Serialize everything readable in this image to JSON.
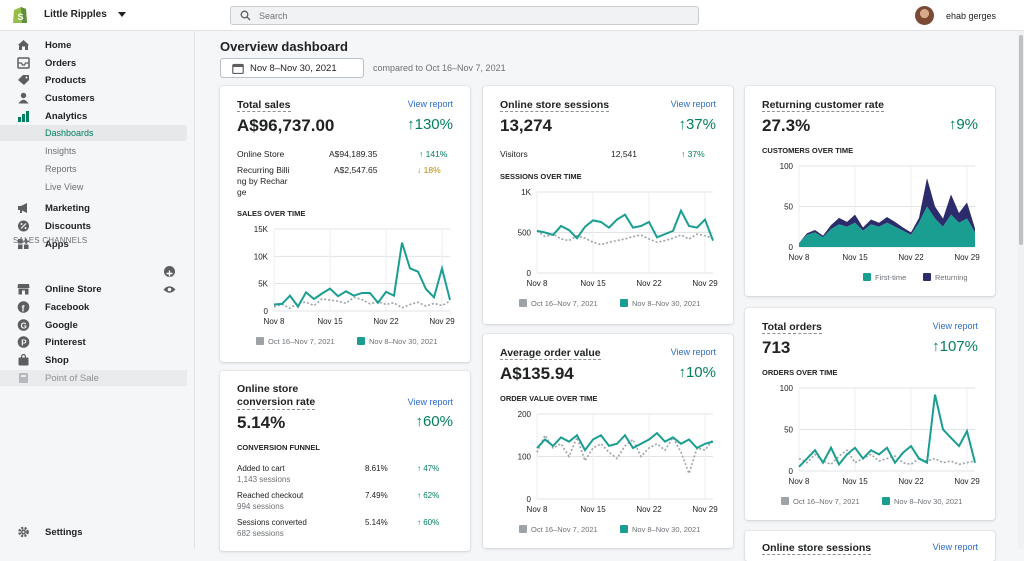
{
  "store_name": "Little Ripples",
  "search": {
    "placeholder": "Search"
  },
  "user_name": "ehab gerges",
  "nav": {
    "home": "Home",
    "orders": "Orders",
    "products": "Products",
    "customers": "Customers",
    "analytics": "Analytics",
    "dashboards": "Dashboards",
    "insights": "Insights",
    "reports": "Reports",
    "live_view": "Live View",
    "marketing": "Marketing",
    "discounts": "Discounts",
    "apps": "Apps",
    "settings": "Settings"
  },
  "sales_channels": {
    "title": "SALES CHANNELS",
    "online_store": "Online Store",
    "facebook": "Facebook",
    "google": "Google",
    "pinterest": "Pinterest",
    "shop": "Shop",
    "pos": "Point of Sale"
  },
  "colors": {
    "accent": "#008060",
    "teal": "#1a9e91",
    "navy": "#2c2b6b",
    "grey": "#9ea3a8",
    "link": "#2c6ecb"
  },
  "page": {
    "title": "Overview dashboard",
    "date_range": "Nov 8–Nov 30, 2021",
    "compare": "compared to Oct 16–Nov 7, 2021"
  },
  "view_report": "View report",
  "legend": {
    "prev": "Oct 16–Nov 7, 2021",
    "cur": "Nov 8–Nov 30, 2021",
    "first": "First-time",
    "returning": "Returning"
  },
  "total_sales": {
    "title": "Total sales",
    "value": "A$96,737.00",
    "pct": "130%",
    "rows": [
      {
        "label": "Online Store",
        "value": "A$94,189.35",
        "pct": "141%"
      },
      {
        "label1": "Recurring Billi",
        "label2": "ng by Rechar",
        "label3": "ge",
        "value": "A$2,547.65",
        "pct": "18%"
      }
    ],
    "chart_title": "SALES OVER TIME"
  },
  "conversion": {
    "title1": "Online store",
    "title2": "conversion rate",
    "value": "5.14%",
    "pct": "60%",
    "funnel_title": "CONVERSION FUNNEL",
    "rows": [
      {
        "label": "Added to cart",
        "sub": "1,143 sessions",
        "value": "8.61%",
        "pct": "47%"
      },
      {
        "label": "Reached checkout",
        "sub": "994 sessions",
        "value": "7.49%",
        "pct": "62%"
      },
      {
        "label": "Sessions converted",
        "sub": "682 sessions",
        "value": "5.14%",
        "pct": "60%"
      }
    ]
  },
  "sessions": {
    "title": "Online store sessions",
    "value": "13,274",
    "pct": "37%",
    "row": {
      "label": "Visitors",
      "value": "12,541",
      "pct": "37%"
    },
    "chart_title": "SESSIONS OVER TIME"
  },
  "aov": {
    "title": "Average order value",
    "value": "A$135.94",
    "pct": "10%",
    "chart_title": "ORDER VALUE OVER TIME"
  },
  "returning": {
    "title": "Returning customer rate",
    "value": "27.3%",
    "pct": "9%",
    "chart_title": "CUSTOMERS OVER TIME"
  },
  "orders": {
    "title": "Total orders",
    "value": "713",
    "pct": "107%",
    "chart_title": "ORDERS OVER TIME"
  },
  "sessions2": {
    "title": "Online store sessions"
  },
  "chart_data": [
    {
      "type": "line",
      "title": "SALES OVER TIME",
      "x_ticks": [
        "Nov 8",
        "Nov 15",
        "Nov 22",
        "Nov 29"
      ],
      "y_ticks": [
        "15K",
        "10K",
        "5K",
        "0"
      ],
      "ylim": [
        0,
        15000
      ],
      "series": [
        {
          "name": "Oct 16–Nov 7, 2021",
          "values": [
            800,
            1200,
            500,
            1500,
            1600,
            1000,
            2200,
            2000,
            1800,
            1400,
            2500,
            2100,
            1300,
            1700,
            1200,
            1500,
            600,
            1200,
            1600,
            900,
            1400,
            1000,
            1800
          ]
        },
        {
          "name": "Nov 8–Nov 30, 2021",
          "values": [
            1200,
            1300,
            2800,
            800,
            3400,
            2200,
            3200,
            4100,
            2700,
            3600,
            2800,
            3300,
            3300,
            1500,
            3500,
            2800,
            12500,
            7800,
            7200,
            4000,
            2500,
            7800,
            2000
          ]
        }
      ]
    },
    {
      "type": "line",
      "title": "SESSIONS OVER TIME",
      "x_ticks": [
        "Nov 8",
        "Nov 15",
        "Nov 22",
        "Nov 29"
      ],
      "y_ticks": [
        "1K",
        "500",
        "0"
      ],
      "ylim": [
        0,
        1000
      ],
      "series": [
        {
          "name": "Oct 16–Nov 7, 2021",
          "values": [
            520,
            450,
            480,
            420,
            400,
            460,
            430,
            380,
            350,
            380,
            400,
            420,
            450,
            470,
            420,
            380,
            400,
            430,
            470,
            420,
            480,
            460,
            430
          ]
        },
        {
          "name": "Nov 8–Nov 30, 2021",
          "values": [
            520,
            500,
            470,
            580,
            530,
            430,
            570,
            650,
            630,
            560,
            660,
            720,
            560,
            580,
            630,
            440,
            480,
            520,
            770,
            580,
            560,
            660,
            400
          ]
        }
      ]
    },
    {
      "type": "line",
      "title": "ORDER VALUE OVER TIME",
      "x_ticks": [
        "Nov 8",
        "Nov 15",
        "Nov 22",
        "Nov 29"
      ],
      "y_ticks": [
        "200",
        "100",
        "0"
      ],
      "ylim": [
        0,
        200
      ],
      "series": [
        {
          "name": "Oct 16–Nov 7, 2021",
          "values": [
            110,
            150,
            120,
            130,
            100,
            145,
            90,
            120,
            130,
            110,
            95,
            125,
            140,
            100,
            120,
            130,
            115,
            145,
            110,
            60,
            120,
            115,
            140
          ]
        },
        {
          "name": "Nov 8–Nov 30, 2021",
          "values": [
            120,
            140,
            125,
            145,
            135,
            150,
            115,
            140,
            150,
            125,
            130,
            150,
            120,
            130,
            140,
            155,
            135,
            145,
            130,
            140,
            120,
            130,
            135
          ]
        }
      ]
    },
    {
      "type": "area",
      "title": "CUSTOMERS OVER TIME",
      "x_ticks": [
        "Nov 8",
        "Nov 15",
        "Nov 22",
        "Nov 29"
      ],
      "y_ticks": [
        "100",
        "50",
        "0"
      ],
      "ylim": [
        0,
        100
      ],
      "series": [
        {
          "name": "First-time",
          "values": [
            5,
            15,
            18,
            12,
            22,
            28,
            25,
            30,
            20,
            28,
            25,
            30,
            25,
            20,
            15,
            30,
            50,
            35,
            25,
            40,
            30,
            35,
            18
          ]
        },
        {
          "name": "Returning",
          "values": [
            0,
            2,
            3,
            2,
            5,
            8,
            6,
            10,
            4,
            6,
            5,
            7,
            6,
            4,
            3,
            6,
            35,
            15,
            10,
            25,
            12,
            20,
            5
          ]
        }
      ]
    },
    {
      "type": "line",
      "title": "ORDERS OVER TIME",
      "x_ticks": [
        "Nov 8",
        "Nov 15",
        "Nov 22",
        "Nov 29"
      ],
      "y_ticks": [
        "100",
        "50",
        "0"
      ],
      "ylim": [
        0,
        100
      ],
      "series": [
        {
          "name": "Oct 16–Nov 7, 2021",
          "values": [
            15,
            10,
            20,
            12,
            8,
            18,
            25,
            10,
            15,
            20,
            12,
            15,
            18,
            10,
            8,
            15,
            12,
            15,
            10,
            12,
            8,
            10,
            12
          ]
        },
        {
          "name": "Nov 8–Nov 30, 2021",
          "values": [
            5,
            15,
            25,
            10,
            28,
            8,
            20,
            28,
            15,
            25,
            20,
            28,
            10,
            22,
            30,
            15,
            10,
            92,
            50,
            40,
            30,
            48,
            10
          ]
        }
      ]
    }
  ]
}
